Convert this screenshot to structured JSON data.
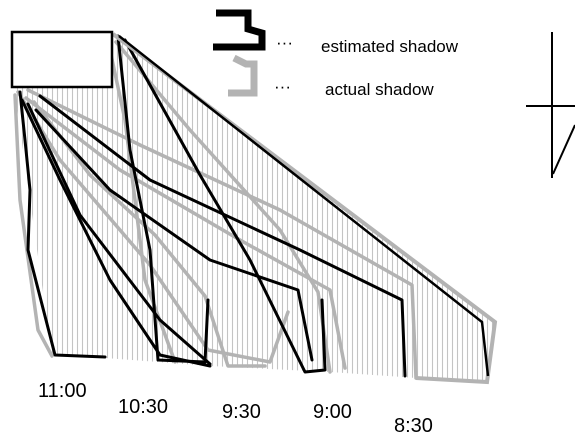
{
  "legend": {
    "estimated_label": "estimated shadow",
    "actual_label": "actual shadow",
    "dots": "···",
    "estimated_color": "#000000",
    "actual_color": "#b3b3b3"
  },
  "time_labels": [
    "11:00",
    "10:30",
    "9:30",
    "9:00",
    "8:30"
  ],
  "colors": {
    "estimated": "#000000",
    "actual": "#b3b3b3",
    "hatch": "#bdbdbd",
    "object_outline": "#000000"
  }
}
